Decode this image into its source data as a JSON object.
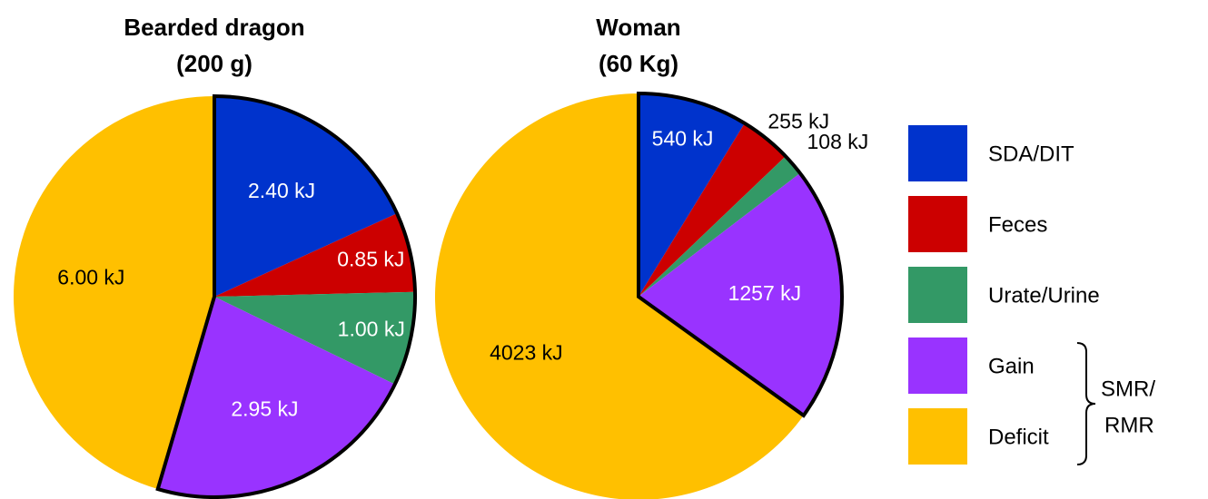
{
  "chart_data": [
    {
      "type": "pie",
      "title": "Bearded dragon",
      "subtitle": "(200 g)",
      "values": [
        2.4,
        0.85,
        1.0,
        2.95,
        6.0
      ],
      "value_labels": [
        "2.40 kJ",
        "0.85 kJ",
        "1.00 kJ",
        "2.95 kJ",
        "6.00 kJ"
      ]
    },
    {
      "type": "pie",
      "title": "Woman",
      "subtitle": "(60 Kg)",
      "values": [
        540,
        255,
        108,
        1257,
        4023
      ],
      "value_labels": [
        "540 kJ",
        "255 kJ",
        "108 kJ",
        "1257 kJ",
        "4023 kJ"
      ]
    }
  ],
  "legend": {
    "categories": [
      "SDA/DIT",
      "Feces",
      "Urate/Urine",
      "Gain",
      "Deficit"
    ],
    "colors": [
      "#0033cc",
      "#cc0000",
      "#339966",
      "#9933ff",
      "#ffc000"
    ],
    "bracket_label": [
      "SMR/",
      "RMR"
    ]
  }
}
